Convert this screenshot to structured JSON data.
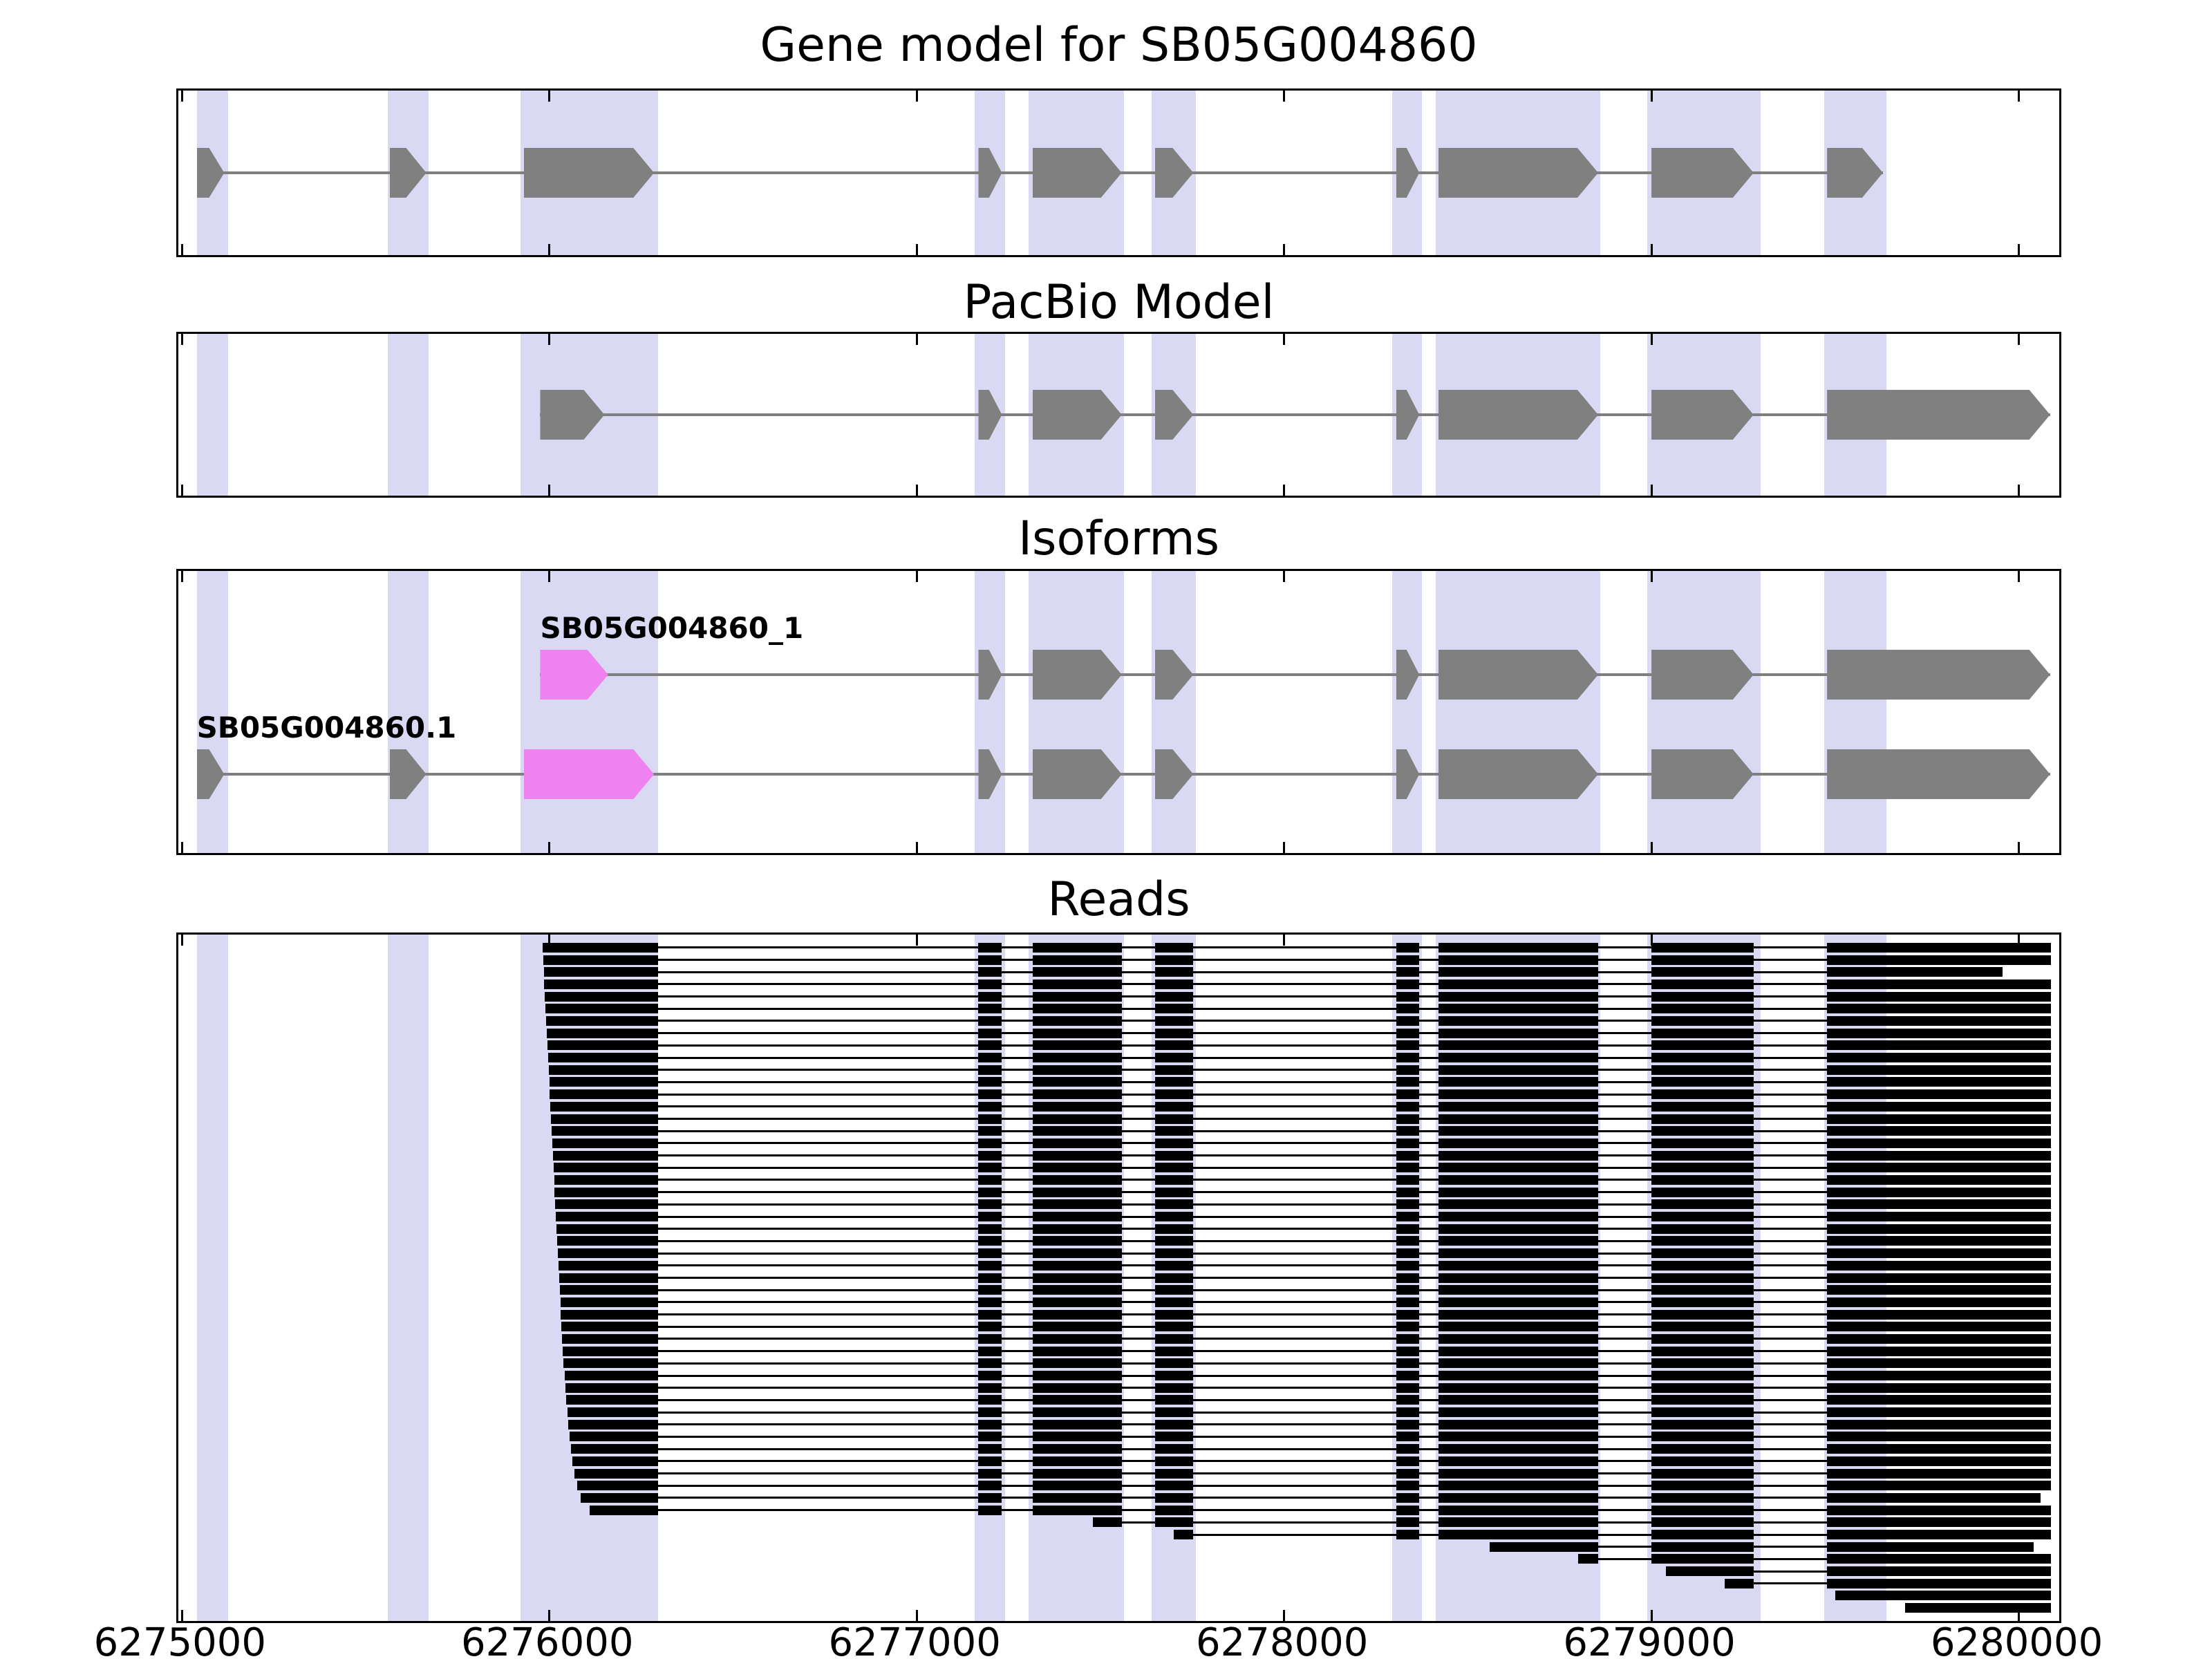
{
  "chart_data": {
    "type": "genome-track",
    "title": "Gene model for SB05G004860",
    "xlabel": "",
    "ylabel": "",
    "xlim": [
      6274990,
      6280110
    ],
    "axis": {
      "domain": [
        6274990,
        6280110
      ],
      "ticks": [
        6275000,
        6276000,
        6277000,
        6278000,
        6279000,
        6280000
      ],
      "tick_labels": [
        "6275000",
        "6276000",
        "6277000",
        "6278000",
        "6279000",
        "6280000"
      ]
    },
    "colors": {
      "exon": "#808080",
      "isoform_highlight": "#ee82ee",
      "highlight_band": "#d9d9f3",
      "intron_line": "#7f7f7f",
      "read": "#000000"
    },
    "highlight_regions": [
      [
        6275040,
        6275125
      ],
      [
        6275560,
        6275672
      ],
      [
        6275922,
        6276295
      ],
      [
        6277158,
        6277240
      ],
      [
        6277305,
        6277565
      ],
      [
        6277640,
        6277760
      ],
      [
        6278295,
        6278375
      ],
      [
        6278412,
        6278860
      ],
      [
        6278988,
        6279298
      ],
      [
        6279470,
        6279640
      ]
    ],
    "panels": [
      {
        "title": "Gene model for SB05G004860",
        "tracks": [
          {
            "name": "SB05G004860",
            "label": "",
            "exons": [
              {
                "s": 6275040,
                "e": 6275115
              },
              {
                "s": 6275565,
                "e": 6275665
              },
              {
                "s": 6275930,
                "e": 6276285
              },
              {
                "s": 6277168,
                "e": 6277232
              },
              {
                "s": 6277315,
                "e": 6277558
              },
              {
                "s": 6277648,
                "e": 6277753
              },
              {
                "s": 6278305,
                "e": 6278368
              },
              {
                "s": 6278420,
                "e": 6278855
              },
              {
                "s": 6279000,
                "e": 6279278
              },
              {
                "s": 6279478,
                "e": 6279630
              }
            ]
          }
        ]
      },
      {
        "title": "PacBio Model",
        "tracks": [
          {
            "name": "PacBio",
            "label": "",
            "exons": [
              {
                "s": 6275975,
                "e": 6276150
              },
              {
                "s": 6277168,
                "e": 6277232
              },
              {
                "s": 6277315,
                "e": 6277558
              },
              {
                "s": 6277648,
                "e": 6277753
              },
              {
                "s": 6278305,
                "e": 6278368
              },
              {
                "s": 6278420,
                "e": 6278855
              },
              {
                "s": 6279000,
                "e": 6279278
              },
              {
                "s": 6279478,
                "e": 6280085
              }
            ]
          }
        ]
      },
      {
        "title": "Isoforms",
        "tracks": [
          {
            "name": "SB05G004860_1",
            "label": "SB05G004860_1",
            "exons": [
              {
                "s": 6275975,
                "e": 6276160,
                "m": true
              },
              {
                "s": 6277168,
                "e": 6277232
              },
              {
                "s": 6277315,
                "e": 6277558
              },
              {
                "s": 6277648,
                "e": 6277753
              },
              {
                "s": 6278305,
                "e": 6278368
              },
              {
                "s": 6278420,
                "e": 6278855
              },
              {
                "s": 6279000,
                "e": 6279278
              },
              {
                "s": 6279478,
                "e": 6280085
              }
            ]
          },
          {
            "name": "SB05G004860.1",
            "label": "SB05G004860.1",
            "exons": [
              {
                "s": 6275040,
                "e": 6275115
              },
              {
                "s": 6275565,
                "e": 6275665
              },
              {
                "s": 6275930,
                "e": 6276285,
                "m": true
              },
              {
                "s": 6277168,
                "e": 6277232
              },
              {
                "s": 6277315,
                "e": 6277558
              },
              {
                "s": 6277648,
                "e": 6277753
              },
              {
                "s": 6278305,
                "e": 6278368
              },
              {
                "s": 6278420,
                "e": 6278855
              },
              {
                "s": 6279000,
                "e": 6279278
              },
              {
                "s": 6279478,
                "e": 6280085
              }
            ]
          }
        ]
      },
      {
        "title": "Reads",
        "tracks": []
      }
    ],
    "read_exons": [
      [
        6275922,
        6276295
      ],
      [
        6277168,
        6277232
      ],
      [
        6277315,
        6277558
      ],
      [
        6277648,
        6277753
      ],
      [
        6278305,
        6278368
      ],
      [
        6278420,
        6278855
      ],
      [
        6279000,
        6279278
      ],
      [
        6279478,
        6280090
      ]
    ],
    "reads": [
      [
        6275982,
        6280088
      ],
      [
        6275983,
        6280088
      ],
      [
        6275985,
        6279955
      ],
      [
        6275986,
        6280088
      ],
      [
        6275988,
        6280088
      ],
      [
        6275990,
        6280088
      ],
      [
        6275991,
        6280088
      ],
      [
        6275993,
        6280088
      ],
      [
        6275995,
        6280088
      ],
      [
        6275996,
        6280088
      ],
      [
        6275998,
        6280088
      ],
      [
        6276000,
        6280088
      ],
      [
        6276000,
        6280088
      ],
      [
        6276002,
        6280088
      ],
      [
        6276004,
        6280088
      ],
      [
        6276006,
        6280088
      ],
      [
        6276008,
        6280088
      ],
      [
        6276009,
        6280088
      ],
      [
        6276011,
        6280088
      ],
      [
        6276013,
        6280088
      ],
      [
        6276014,
        6280088
      ],
      [
        6276016,
        6280088
      ],
      [
        6276018,
        6280088
      ],
      [
        6276019,
        6280088
      ],
      [
        6276021,
        6280088
      ],
      [
        6276023,
        6280088
      ],
      [
        6276024,
        6280088
      ],
      [
        6276026,
        6280088
      ],
      [
        6276028,
        6280088
      ],
      [
        6276030,
        6280088
      ],
      [
        6276031,
        6280088
      ],
      [
        6276033,
        6280088
      ],
      [
        6276035,
        6280088
      ],
      [
        6276037,
        6280088
      ],
      [
        6276039,
        6280088
      ],
      [
        6276041,
        6280088
      ],
      [
        6276044,
        6280088
      ],
      [
        6276046,
        6280088
      ],
      [
        6276049,
        6280088
      ],
      [
        6276052,
        6280088
      ],
      [
        6276055,
        6280088
      ],
      [
        6276058,
        6280088
      ],
      [
        6276062,
        6280088
      ],
      [
        6276068,
        6280088
      ],
      [
        6276075,
        6280088
      ],
      [
        6276085,
        6280060
      ],
      [
        6276110,
        6280088
      ],
      [
        6277480,
        6280088
      ],
      [
        6277700,
        6280088
      ],
      [
        6278560,
        6280040
      ],
      [
        6278800,
        6280088
      ],
      [
        6279040,
        6280088
      ],
      [
        6279200,
        6280088
      ],
      [
        6279500,
        6280088
      ],
      [
        6279690,
        6280088
      ]
    ]
  }
}
